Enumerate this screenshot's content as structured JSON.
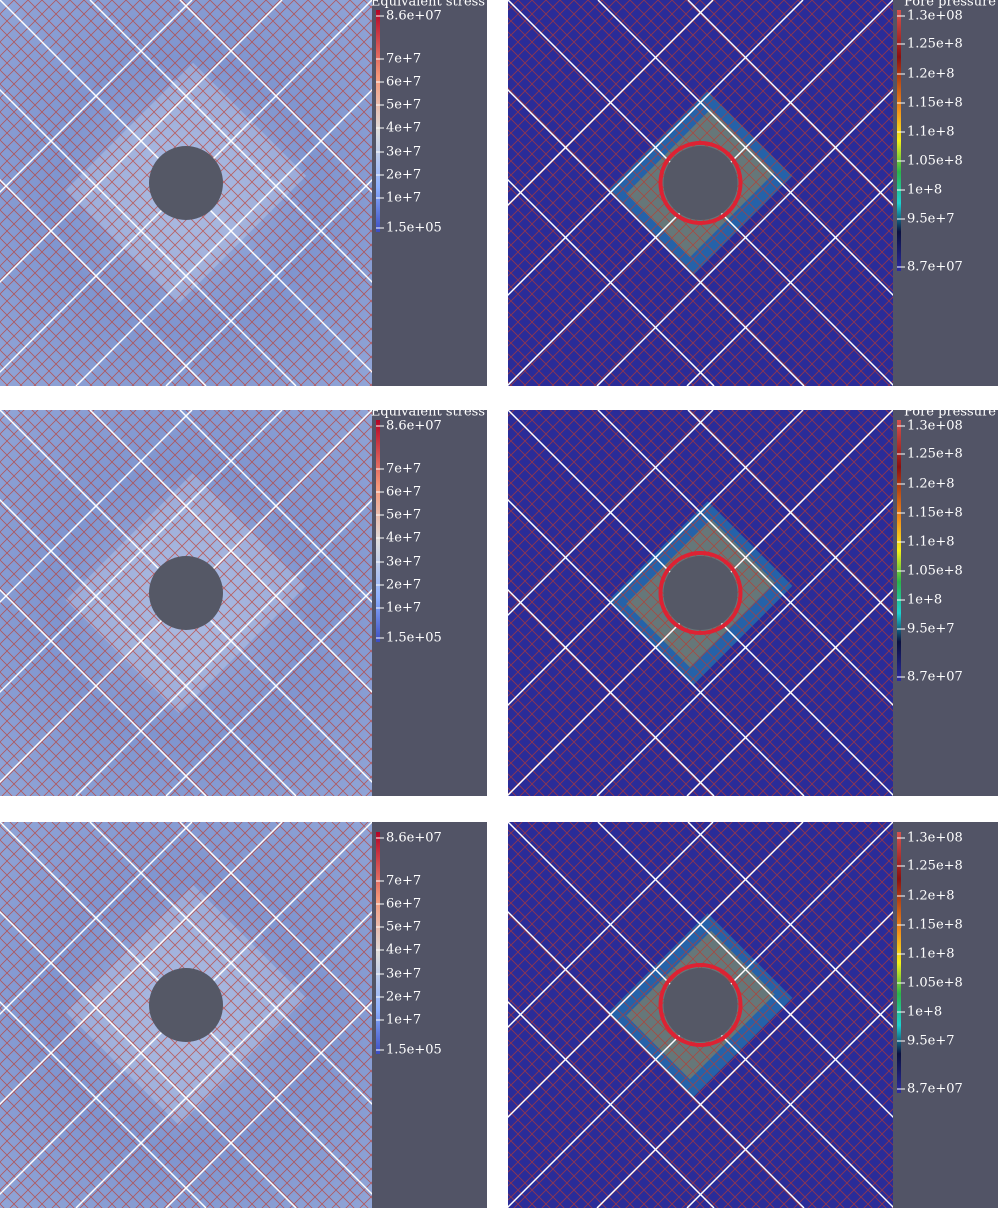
{
  "panels": [
    {
      "colorbar_title": "Equivalent stress",
      "ticks": [
        "8.6e+07",
        "7e+7",
        "6e+7",
        "5e+7",
        "4e+7",
        "3e+7",
        "2e+7",
        "1e+7",
        "1.5e+05"
      ]
    },
    {
      "colorbar_title": "Pore pressure",
      "ticks": [
        "1.3e+08",
        "1.25e+8",
        "1.2e+8",
        "1.15e+8",
        "1.1e+8",
        "1.05e+8",
        "1e+8",
        "9.5e+7",
        "8.7e+07"
      ]
    },
    {
      "colorbar_title": "Equivalent stress",
      "ticks": [
        "8.6e+07",
        "7e+7",
        "6e+7",
        "5e+7",
        "4e+7",
        "3e+7",
        "2e+7",
        "1e+7",
        "1.5e+05"
      ]
    },
    {
      "colorbar_title": "Pore pressure",
      "ticks": [
        "1.3e+08",
        "1.25e+8",
        "1.2e+8",
        "1.15e+8",
        "1.1e+8",
        "1.05e+8",
        "1e+8",
        "9.5e+7",
        "8.7e+07"
      ]
    },
    {
      "ticks": [
        "8.6e+07",
        "7e+7",
        "6e+7",
        "5e+7",
        "4e+7",
        "3e+7",
        "2e+7",
        "1e+7",
        "1.5e+05"
      ]
    },
    {
      "ticks": [
        "1.3e+08",
        "1.25e+8",
        "1.2e+8",
        "1.15e+8",
        "1.1e+8",
        "1.05e+8",
        "1e+8",
        "9.5e+7",
        "8.7e+07"
      ]
    }
  ]
}
